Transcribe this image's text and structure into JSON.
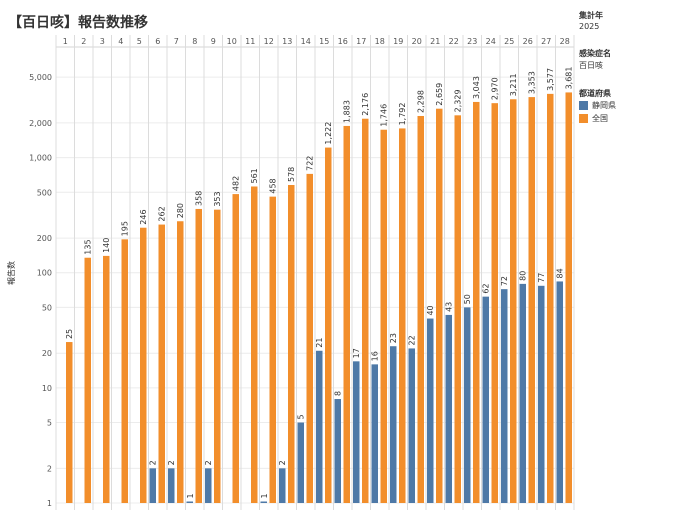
{
  "chart_data": {
    "type": "bar",
    "title": "【百日咳】報告数推移",
    "ylabel": "報告数",
    "xlabel": "",
    "y_scale": "log",
    "ylim": [
      1,
      6500
    ],
    "y_ticks": [
      1,
      2,
      5,
      10,
      20,
      50,
      100,
      200,
      500,
      1000,
      2000,
      5000
    ],
    "y_tick_labels": [
      "1",
      "2",
      "5",
      "10",
      "20",
      "50",
      "100",
      "200",
      "500",
      "1,000",
      "2,000",
      "5,000"
    ],
    "categories": [
      "1",
      "2",
      "3",
      "4",
      "5",
      "6",
      "7",
      "8",
      "9",
      "10",
      "11",
      "12",
      "13",
      "14",
      "15",
      "16",
      "17",
      "18",
      "19",
      "20",
      "21",
      "22",
      "23",
      "24",
      "25",
      "26",
      "27",
      "28"
    ],
    "series": [
      {
        "name": "静岡県",
        "color": "#4e79a7",
        "values": [
          null,
          null,
          null,
          null,
          null,
          2,
          2,
          1,
          2,
          null,
          null,
          1,
          2,
          5,
          21,
          8,
          17,
          16,
          23,
          22,
          40,
          43,
          50,
          62,
          72,
          80,
          77,
          84
        ],
        "labels": [
          null,
          null,
          null,
          null,
          null,
          "2",
          "2",
          "1",
          "2",
          null,
          null,
          "1",
          "2",
          "5",
          "21",
          "8",
          "17",
          "16",
          "23",
          "22",
          "40",
          "43",
          "50",
          "62",
          "72",
          "80",
          "77",
          "84"
        ]
      },
      {
        "name": "全国",
        "color": "#f28e2b",
        "values": [
          25,
          135,
          140,
          195,
          246,
          262,
          280,
          358,
          353,
          482,
          561,
          458,
          578,
          722,
          1222,
          1883,
          2176,
          1746,
          1792,
          2298,
          2659,
          2329,
          3043,
          2970,
          3211,
          3353,
          3577,
          3681
        ],
        "labels": [
          "25",
          "135",
          "140",
          "195",
          "246",
          "262",
          "280",
          "358",
          "353",
          "482",
          "561",
          "458",
          "578",
          "722",
          "1,222",
          "1,883",
          "2,176",
          "1,746",
          "1,792",
          "2,298",
          "2,659",
          "2,329",
          "3,043",
          "2,970",
          "3,211",
          "3,353",
          "3,577",
          "3,681"
        ]
      }
    ]
  },
  "legend": {
    "year_label": "集計年",
    "year_value": "2025",
    "disease_label": "感染症名",
    "disease_value": "百日咳",
    "pref_label": "都道府県"
  }
}
